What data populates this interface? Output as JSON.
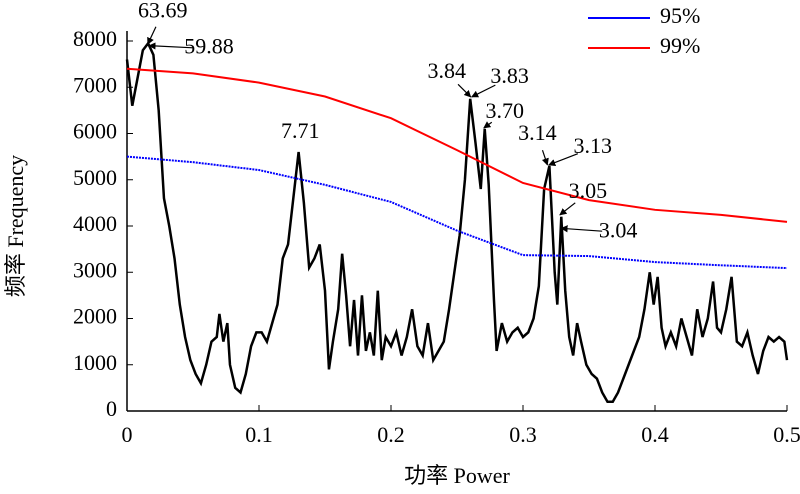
{
  "chart_data": {
    "type": "line",
    "xlabel": "功率 Power",
    "ylabel": "频率 Frequency",
    "xlim": [
      0,
      0.5
    ],
    "xticks": [
      0,
      0.1,
      0.2,
      0.3,
      0.4,
      0.5
    ],
    "ylim": [
      0,
      8000
    ],
    "yticks": [
      0,
      1000,
      2000,
      3000,
      4000,
      5000,
      6000,
      7000,
      8000
    ],
    "legend": "upper right",
    "series": [
      {
        "color": "#000000",
        "x": [
          0,
          0.004,
          0.008,
          0.012,
          0.016,
          0.02,
          0.024,
          0.028,
          0.032,
          0.036,
          0.04,
          0.044,
          0.048,
          0.052,
          0.056,
          0.06,
          0.064,
          0.068,
          0.07,
          0.073,
          0.076,
          0.078,
          0.082,
          0.086,
          0.09,
          0.094,
          0.098,
          0.102,
          0.106,
          0.11,
          0.114,
          0.118,
          0.122,
          0.126,
          0.13,
          0.134,
          0.138,
          0.142,
          0.146,
          0.15,
          0.153,
          0.156,
          0.16,
          0.163,
          0.166,
          0.169,
          0.172,
          0.175,
          0.178,
          0.181,
          0.184,
          0.187,
          0.19,
          0.193,
          0.196,
          0.2,
          0.204,
          0.208,
          0.212,
          0.216,
          0.22,
          0.224,
          0.228,
          0.232,
          0.236,
          0.24,
          0.244,
          0.248,
          0.252,
          0.256,
          0.26,
          0.264,
          0.268,
          0.271,
          0.274,
          0.278,
          0.28,
          0.284,
          0.288,
          0.292,
          0.296,
          0.3,
          0.304,
          0.308,
          0.312,
          0.316,
          0.32,
          0.324,
          0.326,
          0.329,
          0.332,
          0.335,
          0.338,
          0.341,
          0.344,
          0.348,
          0.352,
          0.356,
          0.36,
          0.364,
          0.368,
          0.372,
          0.376,
          0.38,
          0.384,
          0.388,
          0.392,
          0.396,
          0.399,
          0.402,
          0.405,
          0.408,
          0.412,
          0.416,
          0.42,
          0.424,
          0.428,
          0.432,
          0.436,
          0.44,
          0.444,
          0.447,
          0.45,
          0.454,
          0.458,
          0.462,
          0.466,
          0.47,
          0.474,
          0.478,
          0.482,
          0.486,
          0.49,
          0.494,
          0.498,
          0.5
        ],
        "values": [
          7600,
          6600,
          7200,
          7800,
          7950,
          7700,
          6500,
          4600,
          4000,
          3300,
          2300,
          1600,
          1100,
          800,
          600,
          1000,
          1500,
          1600,
          2100,
          1500,
          1900,
          1000,
          500,
          400,
          800,
          1400,
          1700,
          1700,
          1500,
          1900,
          2300,
          3300,
          3600,
          4600,
          5600,
          4500,
          3100,
          3300,
          3600,
          2600,
          900,
          1500,
          2200,
          3400,
          2500,
          1400,
          2400,
          1200,
          2500,
          1300,
          1700,
          1200,
          2600,
          1100,
          1600,
          1400,
          1700,
          1200,
          1600,
          2200,
          1400,
          1200,
          1900,
          1100,
          1300,
          1500,
          2200,
          3000,
          3800,
          5000,
          6750,
          5800,
          4800,
          6100,
          4900,
          2400,
          1300,
          1900,
          1500,
          1700,
          1800,
          1600,
          1700,
          2000,
          2700,
          4800,
          5300,
          3000,
          2300,
          4200,
          2600,
          1600,
          1200,
          1900,
          1500,
          1000,
          800,
          700,
          400,
          200,
          200,
          400,
          700,
          1000,
          1300,
          1600,
          2200,
          3000,
          2300,
          2900,
          1800,
          1400,
          1700,
          1400,
          2000,
          1600,
          1200,
          2200,
          1600,
          2000,
          2800,
          1800,
          1700,
          2200,
          2900,
          1500,
          1400,
          1700,
          1200,
          800,
          1300,
          1600,
          1500,
          1600,
          1500,
          1100
        ]
      },
      {
        "name": "95%",
        "color": "#0000ff",
        "x": [
          0,
          0.05,
          0.1,
          0.15,
          0.2,
          0.25,
          0.3,
          0.35,
          0.4,
          0.45,
          0.5
        ],
        "values": [
          5500,
          5380,
          5210,
          4890,
          4520,
          3900,
          3370,
          3350,
          3220,
          3150,
          3090
        ]
      },
      {
        "name": "99%",
        "color": "#ff0000",
        "x": [
          0,
          0.05,
          0.1,
          0.15,
          0.2,
          0.25,
          0.3,
          0.35,
          0.4,
          0.45,
          0.5
        ],
        "values": [
          7400,
          7300,
          7100,
          6800,
          6330,
          5640,
          4930,
          4560,
          4350,
          4240,
          4090
        ]
      }
    ],
    "annotations": [
      {
        "text": "63.69",
        "x": 0.0157,
        "y": 7930
      },
      {
        "text": "59.88",
        "x": 0.0167,
        "y": 7900
      },
      {
        "text": "7.71",
        "x": 0.1297,
        "y": 5600
      },
      {
        "text": "3.84",
        "x": 0.2604,
        "y": 6790
      },
      {
        "text": "3.83",
        "x": 0.2611,
        "y": 6790
      },
      {
        "text": "3.70",
        "x": 0.2703,
        "y": 6120
      },
      {
        "text": "3.14",
        "x": 0.3185,
        "y": 5320
      },
      {
        "text": "3.13",
        "x": 0.3195,
        "y": 5320
      },
      {
        "text": "3.05",
        "x": 0.3279,
        "y": 4240
      },
      {
        "text": "3.04",
        "x": 0.3289,
        "y": 3950
      }
    ]
  }
}
